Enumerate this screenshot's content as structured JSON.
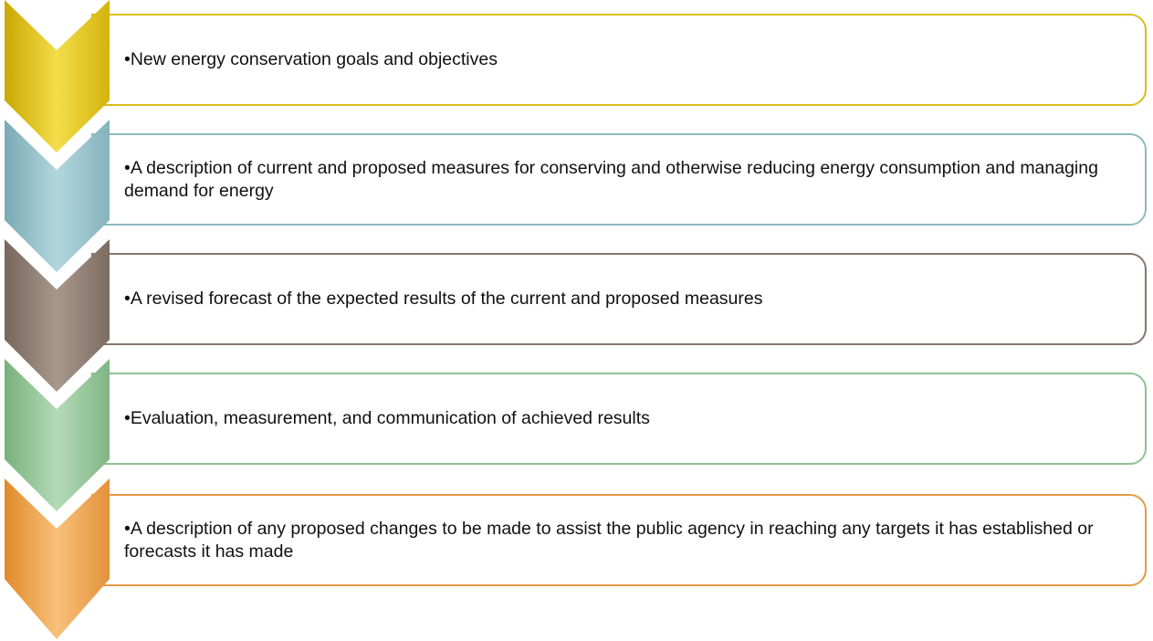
{
  "items": [
    {
      "text": "•New energy conservation goals and objectives"
    },
    {
      "text": "•A description of current and proposed measures for conserving and otherwise reducing energy consumption and managing demand for energy"
    },
    {
      "text": "•A revised forecast of the expected results of the current and proposed measures"
    },
    {
      "text": "•Evaluation, measurement, and communication of achieved results"
    },
    {
      "text": "•A description of any proposed changes to be made to assist the public agency in reaching any targets it has established or forecasts it has made"
    }
  ]
}
